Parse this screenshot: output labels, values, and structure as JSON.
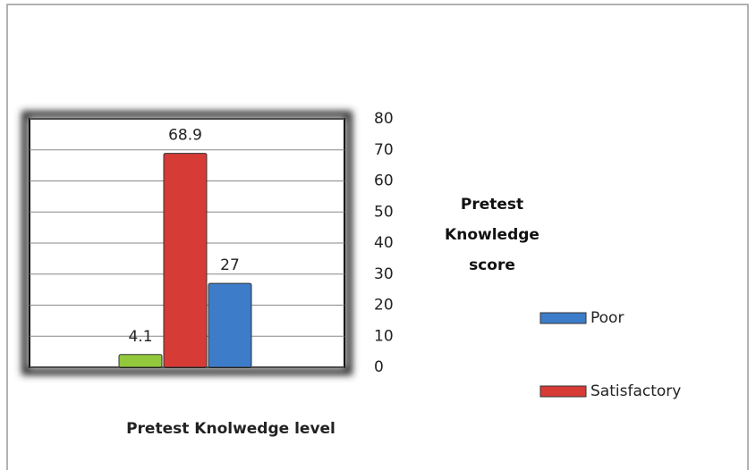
{
  "chart_data": {
    "type": "bar",
    "categories": [
      null
    ],
    "series": [
      {
        "color": "#92c83c",
        "values": [
          4.1
        ]
      },
      {
        "name": "Satisfactory",
        "color": "#d63b36",
        "values": [
          68.9
        ]
      },
      {
        "name": "Poor",
        "color": "#3d7cc9",
        "values": [
          27
        ]
      }
    ],
    "xlabel": "Pretest Knolwedge level",
    "ylabel": "Pretest Knowledge score",
    "ylim": [
      0,
      80
    ],
    "yticks": [
      0,
      10,
      20,
      30,
      40,
      50,
      60,
      70,
      80
    ],
    "grid": true
  }
}
